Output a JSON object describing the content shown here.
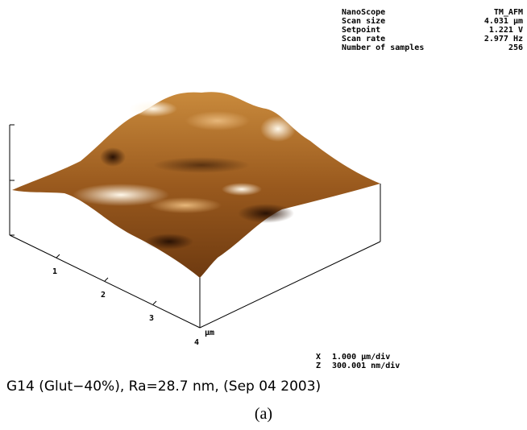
{
  "info": {
    "rows": [
      [
        "NanoScope",
        "TM_AFM"
      ],
      [
        "Scan size",
        "4.031 µm"
      ],
      [
        "Setpoint",
        "1.221 V"
      ],
      [
        "Scan rate",
        "2.977 Hz"
      ],
      [
        "Number of samples",
        "256"
      ]
    ]
  },
  "axis": {
    "ticks": [
      "1",
      "2",
      "3",
      "4"
    ],
    "unit": "µm"
  },
  "scale": {
    "rows": [
      [
        "X",
        "1.000 µm/div"
      ],
      [
        "Z",
        "300.001 nm/div"
      ]
    ]
  },
  "caption": "G14 (Glut−40%), Ra=28.7 nm, (Sep 04 2003)",
  "label": "(a)"
}
